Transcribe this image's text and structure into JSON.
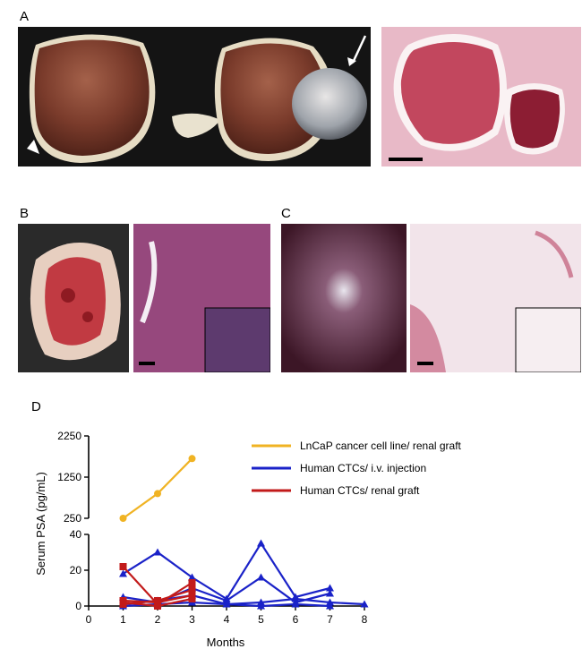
{
  "panels": {
    "a": "A",
    "b": "B",
    "c": "C",
    "d": "D"
  },
  "colors": {
    "lncap": "#f0b323",
    "iv": "#1a22c8",
    "renal": "#c21a1a"
  },
  "chart_data": {
    "type": "line",
    "xlabel": "Months",
    "ylabel": "Serum PSA (pg/mL)",
    "x_ticks": [
      0,
      1,
      2,
      3,
      4,
      5,
      6,
      7,
      8
    ],
    "y_ticks_upper": [
      "250",
      "1250",
      "2250"
    ],
    "y_ticks_lower": [
      "0",
      "20",
      "40"
    ],
    "ylim_upper": [
      250,
      2250
    ],
    "ylim_lower": [
      0,
      40
    ],
    "legend": [
      {
        "label": "LnCaP cancer cell line/ renal graft",
        "color": "#f0b323"
      },
      {
        "label": "Human CTCs/ i.v. injection",
        "color": "#1a22c8"
      },
      {
        "label": "Human CTCs/ renal graft",
        "color": "#c21a1a"
      }
    ],
    "series": [
      {
        "group": "lncap",
        "marker": "circle",
        "x": [
          1,
          2,
          3
        ],
        "y": [
          250,
          850,
          1700
        ]
      },
      {
        "group": "iv",
        "marker": "triangle",
        "x": [
          1,
          2,
          3,
          4,
          5,
          6,
          7
        ],
        "y": [
          18,
          30,
          16,
          4,
          35,
          5,
          10
        ]
      },
      {
        "group": "iv",
        "marker": "triangle",
        "x": [
          1,
          2,
          3,
          4,
          5,
          6,
          7
        ],
        "y": [
          5,
          2,
          10,
          3,
          16,
          2,
          7
        ]
      },
      {
        "group": "iv",
        "marker": "triangle",
        "x": [
          1,
          2,
          3,
          4,
          5,
          6,
          7,
          8
        ],
        "y": [
          1,
          3,
          6,
          1,
          2,
          4,
          2,
          1
        ]
      },
      {
        "group": "iv",
        "marker": "triangle",
        "x": [
          1,
          2,
          3,
          5,
          6,
          7
        ],
        "y": [
          0,
          1,
          2,
          0,
          1,
          0
        ]
      },
      {
        "group": "renal",
        "marker": "square",
        "x": [
          1,
          2,
          3
        ],
        "y": [
          22,
          1,
          13
        ]
      },
      {
        "group": "renal",
        "marker": "square",
        "x": [
          1,
          2,
          3
        ],
        "y": [
          3,
          2,
          6
        ]
      },
      {
        "group": "renal",
        "marker": "square",
        "x": [
          1,
          2,
          3
        ],
        "y": [
          1,
          3,
          9
        ]
      },
      {
        "group": "renal",
        "marker": "square",
        "x": [
          1,
          2,
          3
        ],
        "y": [
          2,
          0,
          4
        ]
      }
    ]
  }
}
